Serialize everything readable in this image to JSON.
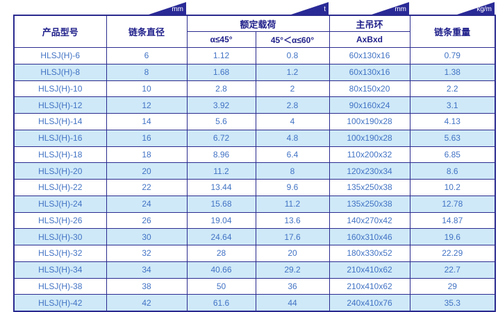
{
  "unit_markers": [
    {
      "id": "diameter",
      "label": "mm"
    },
    {
      "id": "load",
      "label": "t"
    },
    {
      "id": "ring",
      "label": "mm"
    },
    {
      "id": "weight",
      "label": "kg/m"
    }
  ],
  "table": {
    "headers": {
      "product_model": "产品型号",
      "chain_diameter": "链条直径",
      "rated_load": "额定载荷",
      "rated_load_sub_45": "α≤45°",
      "rated_load_sub_60": "45°＜α≤60°",
      "main_ring": "主吊环",
      "main_ring_sub": "AxBxd",
      "chain_weight": "链条重量"
    },
    "rows": [
      [
        "HLSJ(H)-6",
        "6",
        "1.12",
        "0.8",
        "60x130x16",
        "0.79"
      ],
      [
        "HLSJ(H)-8",
        "8",
        "1.68",
        "1.2",
        "60x130x16",
        "1.38"
      ],
      [
        "HLSJ(H)-10",
        "10",
        "2.8",
        "2",
        "80x150x20",
        "2.2"
      ],
      [
        "HLSJ(H)-12",
        "12",
        "3.92",
        "2.8",
        "90x160x24",
        "3.1"
      ],
      [
        "HLSJ(H)-14",
        "14",
        "5.6",
        "4",
        "100x190x28",
        "4.13"
      ],
      [
        "HLSJ(H)-16",
        "16",
        "6.72",
        "4.8",
        "100x190x28",
        "5.63"
      ],
      [
        "HLSJ(H)-18",
        "18",
        "8.96",
        "6.4",
        "110x200x32",
        "6.85"
      ],
      [
        "HLSJ(H)-20",
        "20",
        "11.2",
        "8",
        "120x230x34",
        "8.6"
      ],
      [
        "HLSJ(H)-22",
        "22",
        "13.44",
        "9.6",
        "135x250x38",
        "10.2"
      ],
      [
        "HLSJ(H)-24",
        "24",
        "15.68",
        "11.2",
        "135x250x38",
        "12.78"
      ],
      [
        "HLSJ(H)-26",
        "26",
        "19.04",
        "13.6",
        "140x270x42",
        "14.87"
      ],
      [
        "HLSJ(H)-30",
        "30",
        "24.64",
        "17.6",
        "160x310x46",
        "19.6"
      ],
      [
        "HLSJ(H)-32",
        "32",
        "28",
        "20",
        "180x330x52",
        "22.29"
      ],
      [
        "HLSJ(H)-34",
        "34",
        "40.66",
        "29.2",
        "210x410x62",
        "22.7"
      ],
      [
        "HLSJ(H)-38",
        "38",
        "50",
        "36",
        "210x410x62",
        "29"
      ],
      [
        "HLSJ(H)-42",
        "42",
        "61.6",
        "44",
        "240x410x76",
        "35.3"
      ]
    ],
    "column_cell_names": [
      "cell-product-model",
      "cell-chain-diameter",
      "cell-load-alpha45",
      "cell-load-alpha60",
      "cell-ring-dimensions",
      "cell-chain-weight"
    ]
  },
  "colors": {
    "navy_border": "#2a2a8f",
    "navy_header_text": "#1f1f8a",
    "triangle_fill": "#2a2a97",
    "data_text_blue": "#4273c4",
    "row_alt_blue": "#cfe9f8",
    "row_white": "#ffffff"
  }
}
